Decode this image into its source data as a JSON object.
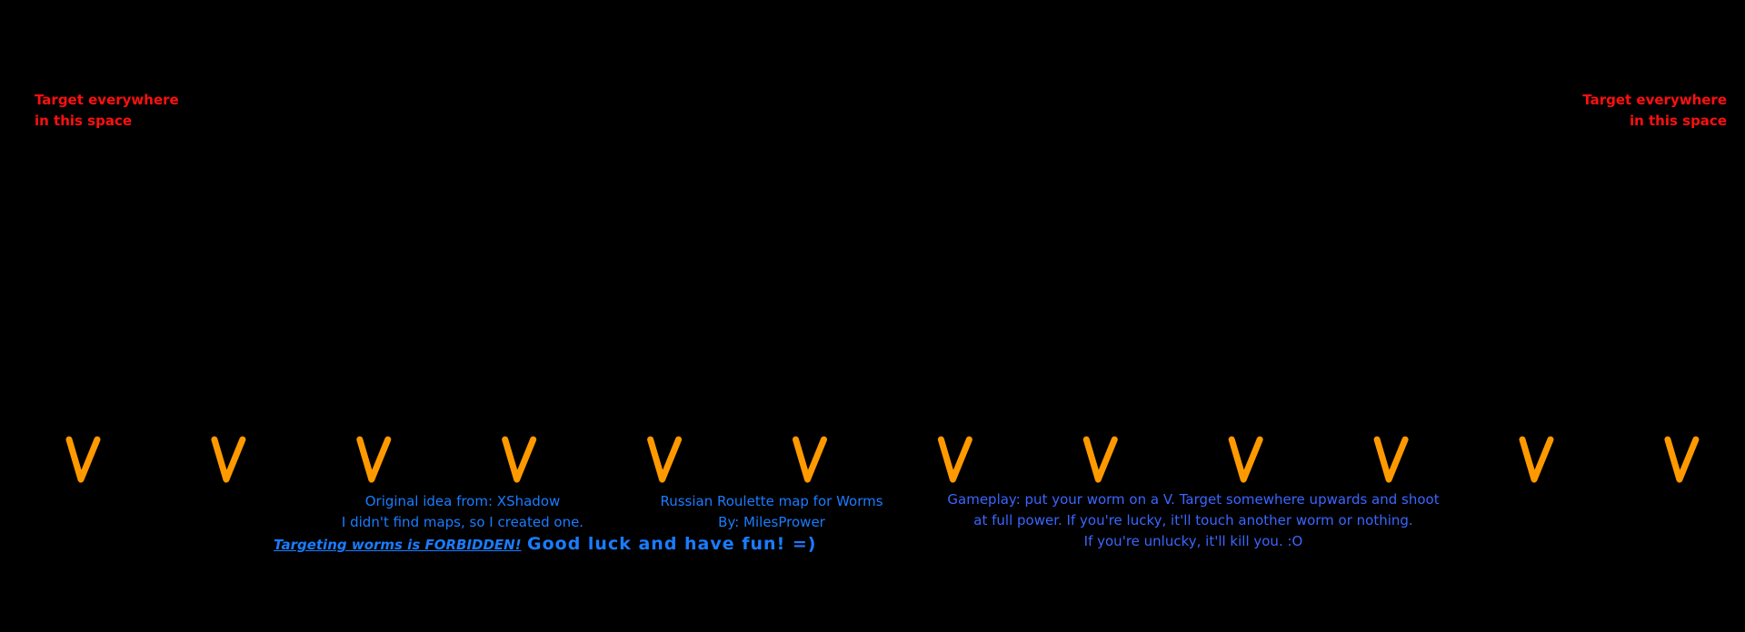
{
  "target_left": {
    "line1": "Target everywhere",
    "line2": "in this space"
  },
  "target_right": {
    "line1": "Target everywhere",
    "line2": "in this space"
  },
  "v_markers": {
    "label": "V",
    "count": 12,
    "color": "#ff9900"
  },
  "credits": {
    "line1": "Original idea from: XShadow",
    "line2": "I didn't find maps, so I created one."
  },
  "title": {
    "line1": "Russian Roulette map for Worms",
    "line2": "By: MilesPrower"
  },
  "warning": "Targeting worms is FORBIDDEN!",
  "good_luck": "Good luck and have fun! =)",
  "gameplay": {
    "line1": "Gameplay: put your worm on a V. Target somewhere upwards and shoot",
    "line2": "at full power. If you're lucky, it'll touch another worm or nothing.",
    "line3": "If you're unlucky, it'll kill you. :O"
  },
  "colors": {
    "background": "#000000",
    "target_text": "#ff1010",
    "info_text": "#1a7cff",
    "gameplay_text": "#3a66ff",
    "v_marker": "#ff9900"
  }
}
